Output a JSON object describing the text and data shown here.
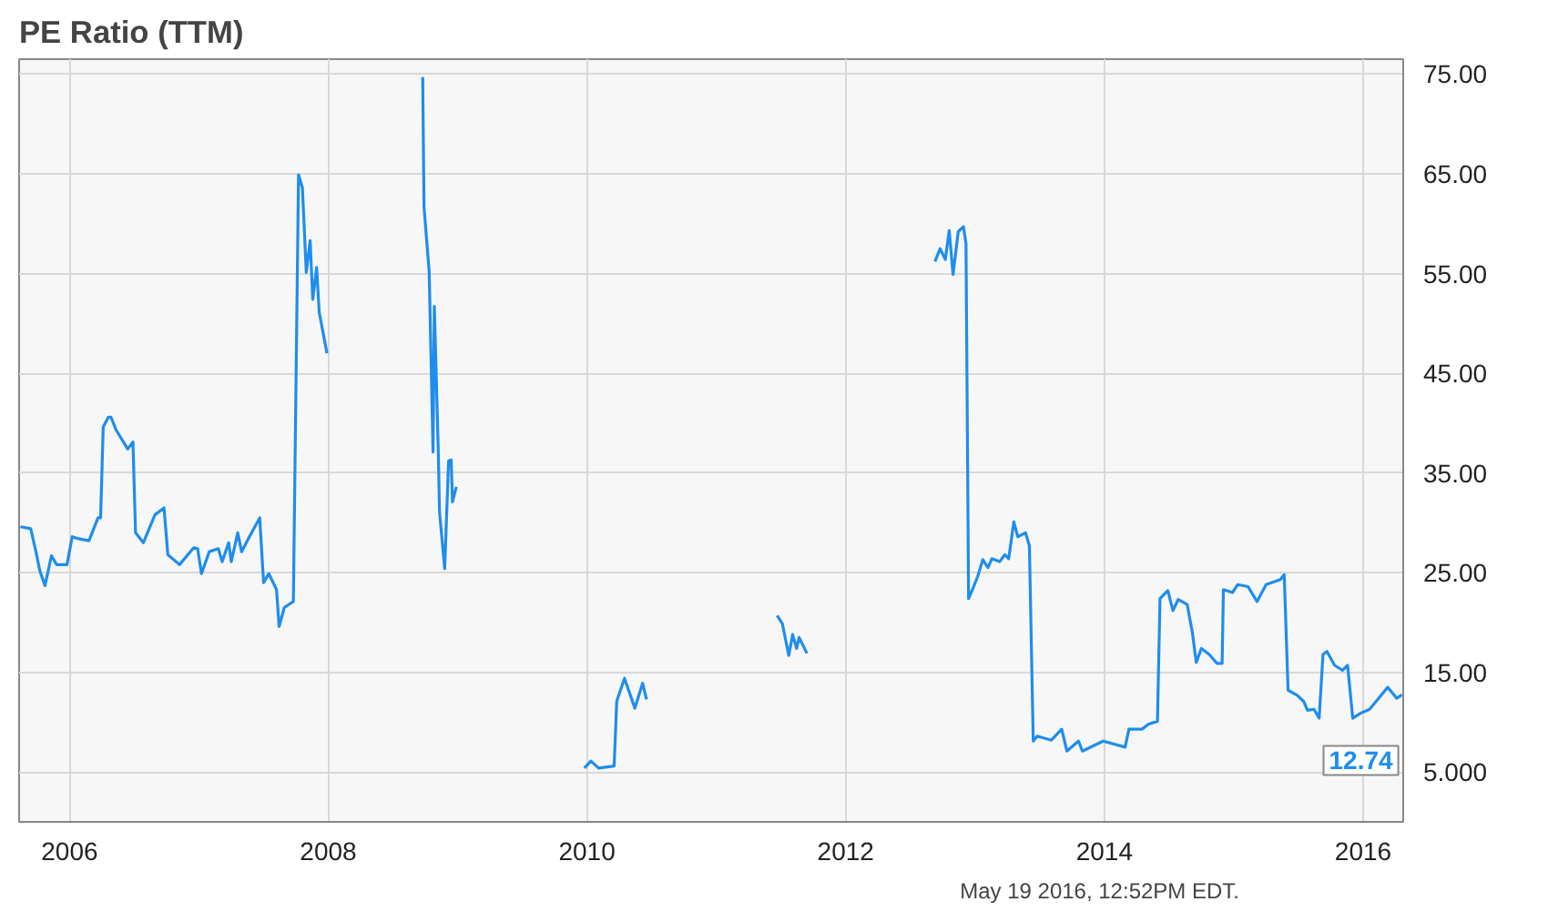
{
  "chart_data": {
    "type": "line",
    "title": "PE Ratio (TTM)",
    "annotations": [
      "May 19 2016, 12:52PM EDT.",
      {
        "text": "12.74",
        "x": 2016.3,
        "y": 12.74
      }
    ],
    "xlim": [
      2005.61,
      2016.31
    ],
    "ylim": [
      0,
      76.5
    ],
    "xticks": [
      2006,
      2008,
      2010,
      2012,
      2014,
      2016
    ],
    "yticks": [
      {
        "value": 5,
        "label": "5.000"
      },
      {
        "value": 15,
        "label": "15.00"
      },
      {
        "value": 25,
        "label": "25.00"
      },
      {
        "value": 35,
        "label": "35.00"
      },
      {
        "value": 45,
        "label": "45.00"
      },
      {
        "value": 55,
        "label": "55.00"
      },
      {
        "value": 65,
        "label": "65.00"
      },
      {
        "value": 75,
        "label": "75.00"
      }
    ],
    "grid": true,
    "series": [
      {
        "color": "#1f8ded",
        "x": [
          2005.62,
          2005.7,
          2005.74,
          2005.77,
          2005.81,
          2005.86,
          2005.9,
          2005.98,
          2006.02,
          2006.07,
          2006.15,
          2006.22,
          2006.24,
          2006.26,
          2006.3,
          2006.32,
          2006.36,
          2006.45,
          2006.49,
          2006.51,
          2006.57,
          2006.66,
          2006.73,
          2006.76,
          2006.85,
          2006.96,
          2006.99,
          2007.02,
          2007.08,
          2007.15,
          2007.18,
          2007.23,
          2007.25,
          2007.3,
          2007.33,
          2007.39,
          2007.47,
          2007.5,
          2007.54,
          2007.6,
          2007.62,
          2007.66,
          2007.73,
          2007.77,
          2007.8,
          2007.83,
          2007.86,
          2007.88,
          2007.91,
          2007.93,
          2007.99,
          2008.4,
          2008.73,
          2008.74,
          2008.78,
          2008.81,
          2008.82,
          2008.85,
          2008.86,
          2008.9,
          2008.93,
          2008.95,
          2008.96,
          2008.99,
          2009.5,
          2009.98,
          2010.03,
          2010.09,
          2010.21,
          2010.23,
          2010.29,
          2010.37,
          2010.43,
          2010.46,
          2011.0,
          2011.47,
          2011.51,
          2011.56,
          2011.59,
          2011.62,
          2011.64,
          2011.7,
          2012.2,
          2012.69,
          2012.73,
          2012.77,
          2012.8,
          2012.83,
          2012.87,
          2012.91,
          2012.93,
          2012.95,
          2012.98,
          2013.02,
          2013.06,
          2013.1,
          2013.13,
          2013.19,
          2013.23,
          2013.26,
          2013.3,
          2013.33,
          2013.39,
          2013.42,
          2013.45,
          2013.48,
          2013.59,
          2013.67,
          2013.71,
          2013.8,
          2013.83,
          2013.99,
          2014.16,
          2014.19,
          2014.29,
          2014.34,
          2014.41,
          2014.43,
          2014.49,
          2014.53,
          2014.57,
          2014.64,
          2014.68,
          2014.71,
          2014.75,
          2014.81,
          2014.87,
          2014.91,
          2014.92,
          2014.99,
          2015.03,
          2015.11,
          2015.18,
          2015.25,
          2015.36,
          2015.39,
          2015.42,
          2015.49,
          2015.54,
          2015.57,
          2015.62,
          2015.66,
          2015.69,
          2015.72,
          2015.78,
          2015.84,
          2015.88,
          2015.92,
          2015.98,
          2016.05,
          2016.12,
          2016.19,
          2016.26,
          2016.3
        ],
        "values": [
          29.6,
          29.4,
          27.1,
          25.2,
          23.7,
          26.7,
          25.8,
          25.8,
          28.6,
          28.4,
          28.2,
          30.5,
          30.5,
          39.6,
          40.6,
          40.6,
          39.3,
          37.4,
          38.1,
          29.0,
          28.0,
          30.8,
          31.5,
          26.8,
          25.8,
          27.5,
          27.4,
          24.9,
          27.1,
          27.4,
          26.1,
          28.0,
          26.1,
          29.0,
          27.1,
          28.6,
          30.5,
          24.0,
          24.9,
          23.3,
          19.6,
          21.5,
          22.1,
          64.9,
          63.6,
          55.1,
          58.3,
          52.4,
          55.6,
          51.1,
          47.0,
          null,
          74.7,
          61.7,
          55.2,
          37.1,
          51.7,
          37.4,
          31.1,
          25.4,
          36.2,
          36.3,
          32.1,
          33.6,
          null,
          5.4,
          6.1,
          5.4,
          5.6,
          12.1,
          14.4,
          11.4,
          13.9,
          12.3,
          null,
          20.7,
          19.9,
          16.7,
          18.8,
          17.4,
          18.5,
          16.9,
          null,
          56.2,
          57.5,
          56.4,
          59.3,
          54.9,
          59.2,
          59.7,
          58.0,
          22.4,
          23.3,
          24.6,
          26.3,
          25.5,
          26.4,
          26.1,
          26.8,
          26.4,
          30.1,
          28.6,
          29.0,
          27.7,
          8.1,
          8.6,
          8.2,
          9.3,
          7.1,
          8.1,
          7.1,
          8.1,
          7.5,
          9.3,
          9.3,
          9.8,
          10.1,
          22.4,
          23.2,
          21.2,
          22.3,
          21.8,
          19.0,
          16.0,
          17.4,
          16.8,
          15.9,
          15.9,
          23.3,
          23.0,
          23.8,
          23.6,
          22.1,
          23.8,
          24.3,
          24.8,
          13.2,
          12.7,
          12.1,
          11.2,
          11.3,
          10.4,
          16.8,
          17.1,
          15.7,
          15.2,
          15.7,
          10.4,
          10.9,
          11.3,
          12.4,
          13.5,
          12.4,
          12.74
        ]
      }
    ]
  }
}
